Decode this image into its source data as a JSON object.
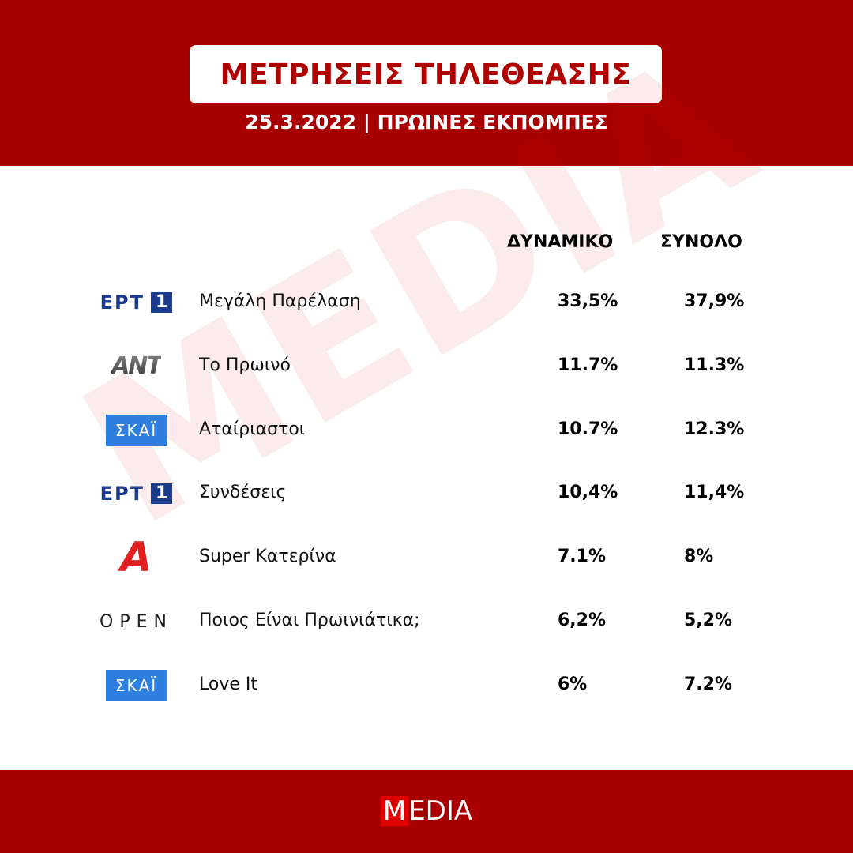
{
  "header": {
    "title": "ΜΕΤΡΗΣΕΙΣ ΤΗΛΕΘΕΑΣΗΣ",
    "subtitle": "25.3.2022 | ΠΡΩΙΝΕΣ ΕΚΠΟΜΠΕΣ"
  },
  "watermark": "MEDIA",
  "table": {
    "columns": [
      "ΔΥΝΑΜΙΚΟ",
      "ΣΥΝΟΛΟ"
    ],
    "rows": [
      {
        "logo": {
          "text": "ΕΡΤ",
          "badge": "1"
        },
        "show": "Μεγάλη Παρέλαση",
        "values": [
          "33,5%",
          "37,9%"
        ]
      },
      {
        "logo": {
          "text": "ANT"
        },
        "show": "Το Πρωινό",
        "values": [
          "11.7%",
          "11.3%"
        ]
      },
      {
        "logo": {
          "text": "ΣΚΑΪ"
        },
        "show": "Αταίριαστοι",
        "values": [
          "10.7%",
          "12.3%"
        ]
      },
      {
        "logo": {
          "text": "ΕΡΤ",
          "badge": "1"
        },
        "show": "Συνδέσεις",
        "values": [
          "10,4%",
          "11,4%"
        ]
      },
      {
        "logo": {
          "text": "A"
        },
        "show": "Super Κατερίνα",
        "values": [
          "7.1%",
          "8%"
        ]
      },
      {
        "logo": {
          "text": "OPEN"
        },
        "show": "Ποιος Είναι Πρωινιάτικα;",
        "values": [
          "6,2%",
          "5,2%"
        ]
      },
      {
        "logo": {
          "text": "ΣΚΑΪ"
        },
        "show": "Love It",
        "values": [
          "6%",
          "7.2%"
        ]
      }
    ]
  },
  "footer": {
    "mark": "M",
    "text": "EDIA"
  }
}
